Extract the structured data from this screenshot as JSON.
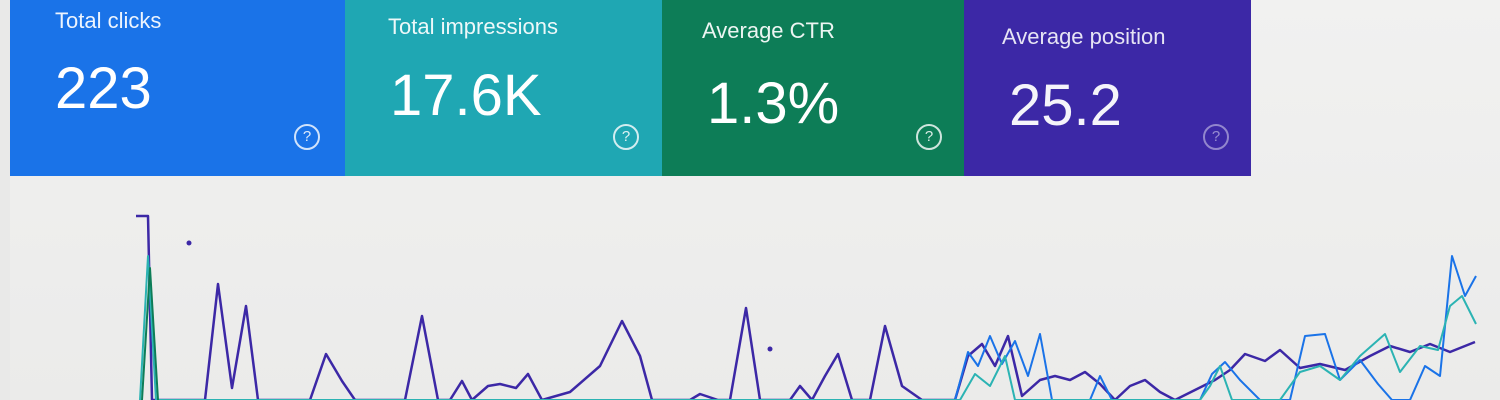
{
  "metrics": [
    {
      "label": "Total clicks",
      "value": "223",
      "color": "#1a73e8"
    },
    {
      "label": "Total impressions",
      "value": "17.6K",
      "color": "#1fa7b3"
    },
    {
      "label": "Average CTR",
      "value": "1.3%",
      "color": "#0d7d57"
    },
    {
      "label": "Average position",
      "value": "25.2",
      "color": "#3c28a6"
    }
  ],
  "help_icon": "help-circle",
  "colors": {
    "clicks": "#1a73e8",
    "impressions": "#2bb3b3",
    "ctr": "#0d7d57",
    "position": "#3c28a6"
  },
  "chart_data": {
    "type": "line",
    "series": [
      {
        "name": "Average position",
        "color": "#3c28a6"
      },
      {
        "name": "Total clicks",
        "color": "#1a73e8"
      },
      {
        "name": "Total impressions",
        "color": "#2bb3b3"
      },
      {
        "name": "Average CTR",
        "color": "#0d7d57"
      }
    ]
  }
}
